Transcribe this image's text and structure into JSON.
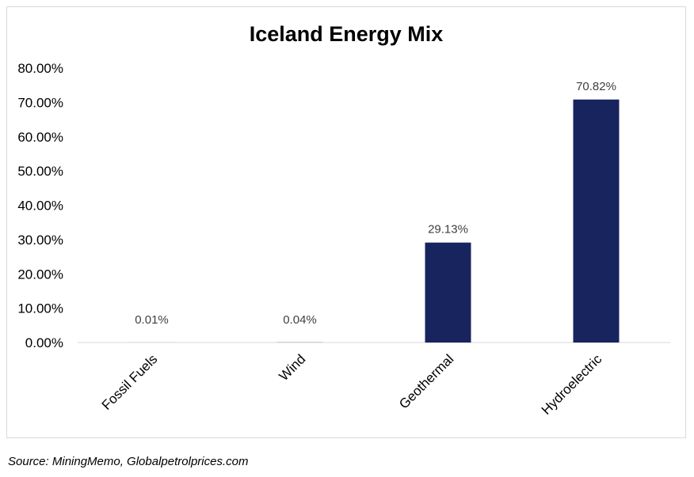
{
  "chart_data": {
    "type": "bar",
    "title": "Iceland Energy Mix",
    "categories": [
      "Fossil Fuels",
      "Wind",
      "Geothermal",
      "Hydroelectric"
    ],
    "values": [
      0.01,
      0.04,
      29.13,
      70.82
    ],
    "data_labels": [
      "0.01%",
      "0.04%",
      "29.13%",
      "70.82%"
    ],
    "ylim": [
      0,
      80
    ],
    "y_ticks": [
      0,
      10,
      20,
      30,
      40,
      50,
      60,
      70,
      80
    ],
    "y_tick_labels": [
      "0.00%",
      "10.00%",
      "20.00%",
      "30.00%",
      "40.00%",
      "50.00%",
      "60.00%",
      "70.00%",
      "80.00%"
    ],
    "xlabel": "",
    "ylabel": "",
    "grid": false,
    "legend": "none",
    "bar_color": "#17245e"
  },
  "source": "Source: MiningMemo, Globalpetrolprices.com"
}
